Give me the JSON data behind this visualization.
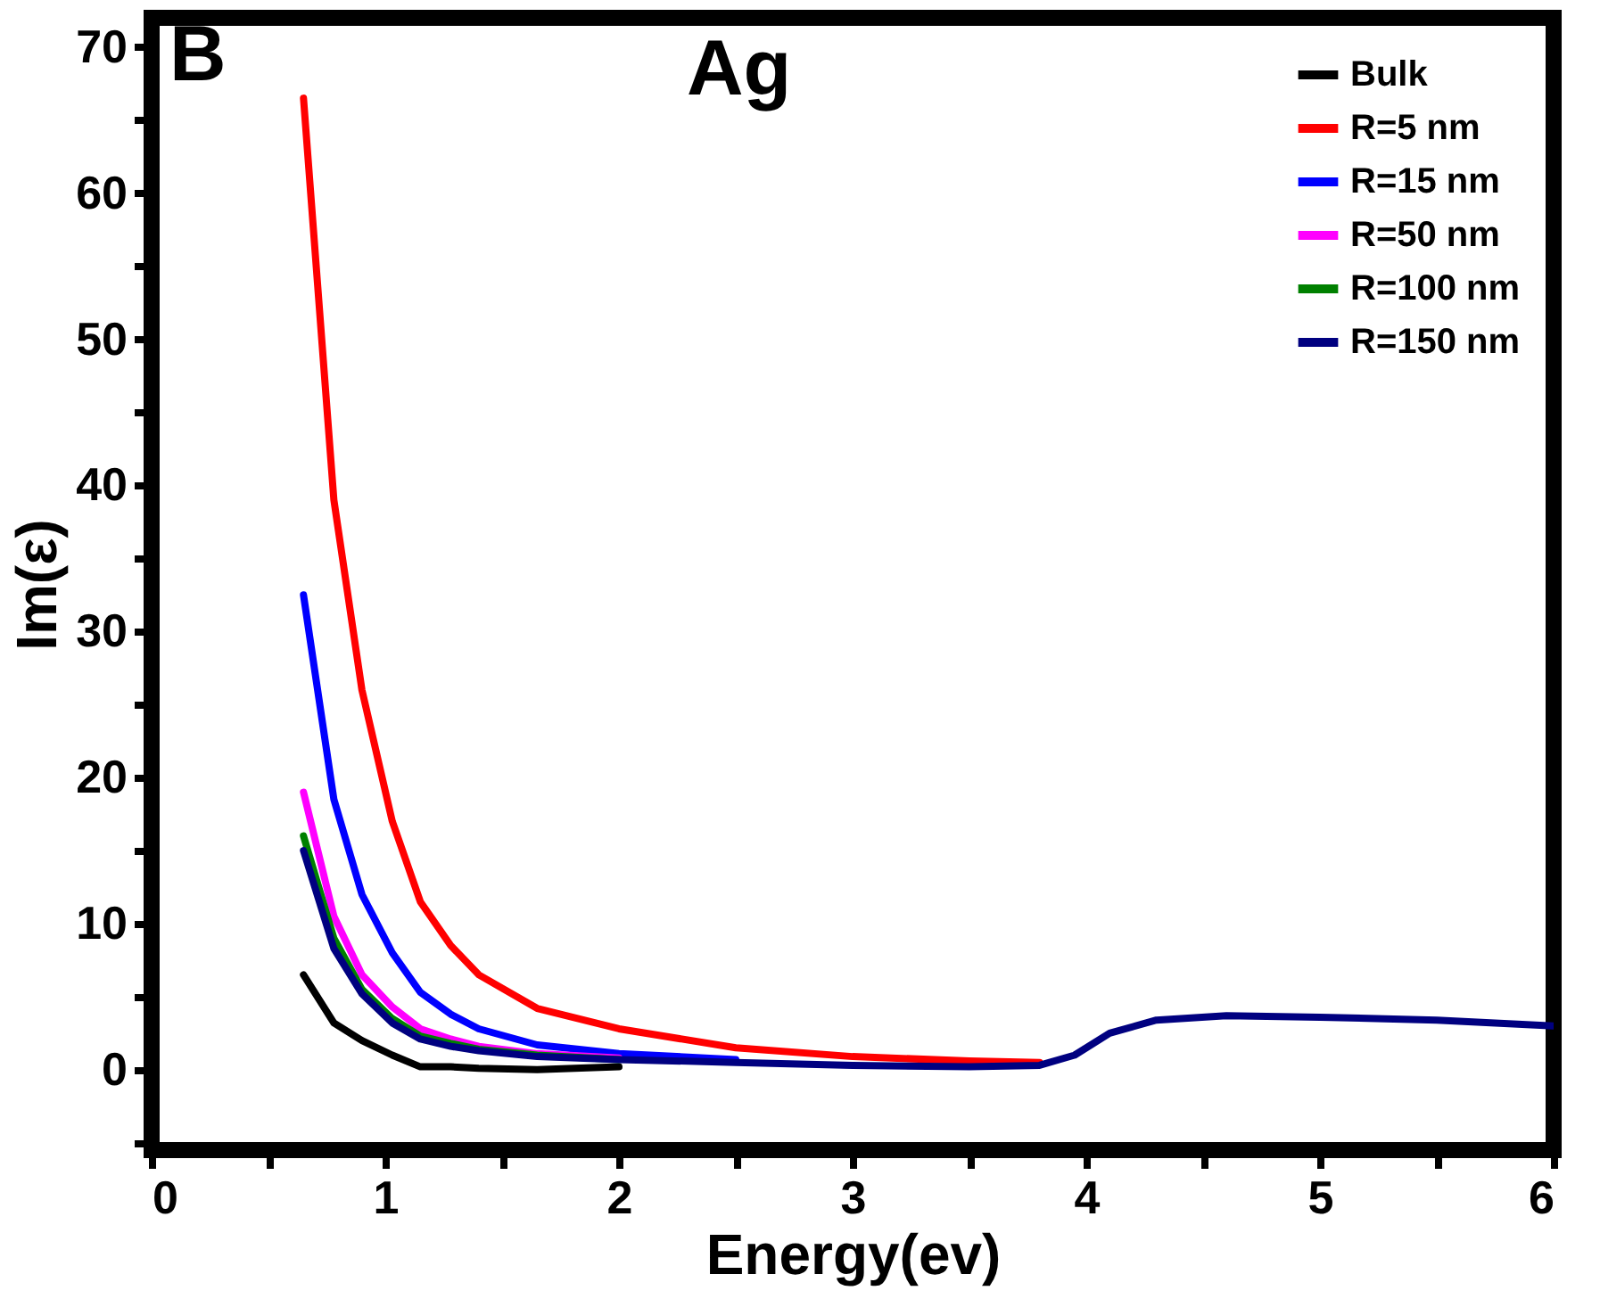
{
  "chart_data": {
    "type": "line",
    "xlabel": "Energy(ev)",
    "ylabel": "Im(ε)",
    "annotations": [
      "B",
      "Ag"
    ],
    "x": [
      0.65,
      0.78,
      0.9,
      1.03,
      1.15,
      1.28,
      1.4,
      1.65,
      2.0,
      2.5,
      3.0,
      3.5,
      3.8,
      3.95,
      4.1,
      4.3,
      4.6,
      5.0,
      5.5,
      6.0
    ],
    "series": [
      {
        "name": "Bulk",
        "color": "#000000",
        "values": [
          6.5,
          3.2,
          2.0,
          1.0,
          0.2,
          0.2,
          0.1,
          0.0,
          0.2,
          null,
          null,
          null,
          null,
          null,
          null,
          null,
          null,
          null,
          null,
          null
        ]
      },
      {
        "name": "R=5 nm",
        "color": "#ff0000",
        "values": [
          66.5,
          39,
          26,
          17,
          11.5,
          8.5,
          6.5,
          4.2,
          2.8,
          1.5,
          0.9,
          0.6,
          0.5,
          null,
          null,
          null,
          null,
          null,
          null,
          null
        ]
      },
      {
        "name": "R=15 nm",
        "color": "#0000ff",
        "values": [
          32.5,
          18.5,
          12,
          8,
          5.3,
          3.8,
          2.8,
          1.7,
          1.1,
          0.7,
          null,
          null,
          null,
          null,
          null,
          null,
          null,
          null,
          null,
          null
        ]
      },
      {
        "name": "R=50 nm",
        "color": "#ff00ff",
        "values": [
          19,
          10.5,
          6.5,
          4.3,
          2.8,
          2.1,
          1.6,
          1.1,
          0.8,
          null,
          null,
          null,
          null,
          null,
          null,
          null,
          null,
          null,
          null,
          null
        ]
      },
      {
        "name": "R=100 nm",
        "color": "#008000",
        "values": [
          16,
          9,
          5.5,
          3.5,
          2.3,
          1.8,
          1.4,
          1.0,
          0.7,
          null,
          null,
          null,
          null,
          null,
          null,
          null,
          null,
          null,
          null,
          null
        ]
      },
      {
        "name": "R=150 nm",
        "color": "#000080",
        "values": [
          15,
          8.3,
          5.2,
          3.2,
          2.1,
          1.6,
          1.3,
          0.9,
          0.7,
          0.5,
          0.3,
          0.2,
          0.3,
          1.0,
          2.5,
          3.4,
          3.7,
          3.6,
          3.4,
          3.0
        ]
      }
    ],
    "xlim": [
      0,
      6
    ],
    "xticks": [
      0,
      {
        "value": 0.5,
        "label": null
      },
      1,
      {
        "value": 1.5,
        "label": null
      },
      2,
      {
        "value": 2.5,
        "label": null
      },
      3,
      {
        "value": 3.5,
        "label": null
      },
      4,
      {
        "value": 4.5,
        "label": null
      },
      5,
      {
        "value": 5.5,
        "label": null
      },
      6
    ],
    "ylim": [
      -5.5,
      72
    ],
    "yticks": [
      {
        "value": -5,
        "label": null
      },
      0,
      {
        "value": 5,
        "label": null
      },
      10,
      {
        "value": 15,
        "label": null
      },
      20,
      {
        "value": 25,
        "label": null
      },
      30,
      {
        "value": 35,
        "label": null
      },
      40,
      {
        "value": 45,
        "label": null
      },
      50,
      {
        "value": 55,
        "label": null
      },
      60,
      {
        "value": 65,
        "label": null
      },
      70
    ],
    "legend": "top right",
    "grid": false,
    "marker": "none",
    "line_style": "solid"
  }
}
